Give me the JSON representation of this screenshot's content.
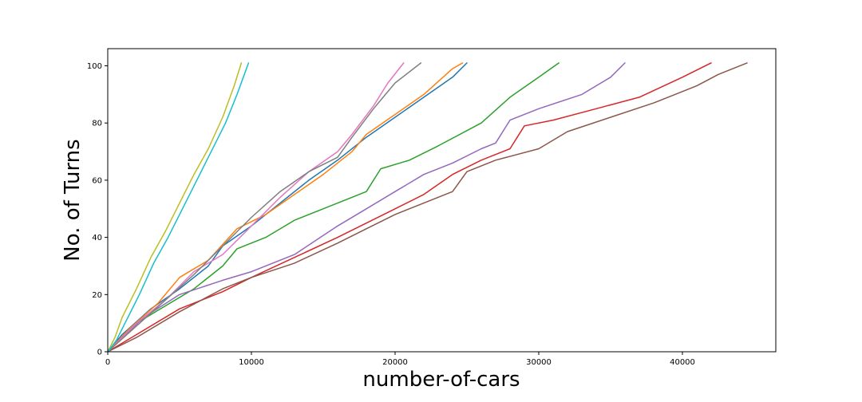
{
  "chart_data": {
    "type": "line",
    "xlabel": "number-of-cars",
    "ylabel": "No. of Turns",
    "xlim": [
      0,
      46500
    ],
    "ylim": [
      0,
      106
    ],
    "xticks": [
      0,
      10000,
      20000,
      30000,
      40000
    ],
    "yticks": [
      0,
      20,
      40,
      60,
      80,
      100
    ],
    "grid": false,
    "series": [
      {
        "color": "#1f77b4",
        "x": [
          0,
          1000,
          3000,
          5000,
          7000,
          8000,
          10000,
          12000,
          14000,
          16000,
          18000,
          20000,
          22000,
          24000,
          25000
        ],
        "y": [
          0,
          6,
          15,
          22,
          30,
          37,
          44,
          52,
          60,
          67,
          75,
          82,
          89,
          96,
          101
        ]
      },
      {
        "color": "#ff7f0e",
        "x": [
          0,
          1500,
          3500,
          5000,
          7000,
          9000,
          11000,
          13000,
          15000,
          17000,
          18000,
          20000,
          22000,
          24000,
          24700
        ],
        "y": [
          0,
          8,
          17,
          26,
          32,
          43,
          48,
          55,
          62,
          70,
          76,
          83,
          90,
          99,
          101
        ]
      },
      {
        "color": "#2ca02c",
        "x": [
          0,
          2000,
          4000,
          6000,
          8000,
          9000,
          11000,
          13000,
          16000,
          18000,
          19000,
          21000,
          23000,
          26000,
          28000,
          30000,
          31400
        ],
        "y": [
          0,
          10,
          16,
          22,
          30,
          36,
          40,
          46,
          52,
          56,
          64,
          67,
          72,
          80,
          89,
          96,
          101
        ]
      },
      {
        "color": "#d62728",
        "x": [
          0,
          2000,
          5000,
          8000,
          10000,
          13000,
          16000,
          18000,
          20000,
          22000,
          24000,
          26000,
          28000,
          29000,
          31000,
          34000,
          37000,
          40000,
          42000
        ],
        "y": [
          0,
          6,
          15,
          21,
          26,
          33,
          40,
          45,
          50,
          55,
          62,
          67,
          71,
          79,
          81,
          85,
          89,
          96,
          101
        ]
      },
      {
        "color": "#9467bd",
        "x": [
          0,
          2500,
          5000,
          8000,
          10000,
          13000,
          16000,
          18000,
          20000,
          22000,
          24000,
          26000,
          27000,
          28000,
          30000,
          33000,
          35000,
          36000
        ],
        "y": [
          0,
          12,
          20,
          25,
          28,
          34,
          44,
          50,
          56,
          62,
          66,
          71,
          73,
          81,
          85,
          90,
          96,
          101
        ]
      },
      {
        "color": "#8c564b",
        "x": [
          0,
          2000,
          5000,
          8000,
          10000,
          13000,
          16000,
          18000,
          20000,
          24000,
          25000,
          27000,
          30000,
          32000,
          35000,
          38000,
          41000,
          42500,
          44500
        ],
        "y": [
          0,
          5,
          14,
          22,
          26,
          31,
          38,
          43,
          48,
          56,
          63,
          67,
          71,
          77,
          82,
          87,
          93,
          97,
          101
        ]
      },
      {
        "color": "#e377c2",
        "x": [
          0,
          2000,
          4000,
          6000,
          8000,
          10000,
          12000,
          14000,
          16000,
          17000,
          18500,
          19500,
          20600
        ],
        "y": [
          0,
          10,
          18,
          28,
          34,
          44,
          54,
          63,
          70,
          76,
          86,
          94,
          101
        ]
      },
      {
        "color": "#7f7f7f",
        "x": [
          0,
          2000,
          4000,
          6000,
          8000,
          10000,
          12000,
          14000,
          16000,
          17000,
          18500,
          20000,
          21800
        ],
        "y": [
          0,
          9,
          18,
          27,
          37,
          47,
          56,
          63,
          68,
          75,
          85,
          94,
          101
        ]
      },
      {
        "color": "#bcbd22",
        "x": [
          0,
          500,
          1000,
          2000,
          3000,
          4000,
          5000,
          6000,
          7000,
          8000,
          8800,
          9300
        ],
        "y": [
          0,
          5,
          12,
          22,
          33,
          42,
          52,
          62,
          71,
          82,
          93,
          101
        ]
      },
      {
        "color": "#17becf",
        "x": [
          0,
          600,
          1200,
          2200,
          3200,
          4200,
          5200,
          6200,
          7200,
          8200,
          9000,
          9800
        ],
        "y": [
          0,
          4,
          10,
          20,
          31,
          40,
          50,
          60,
          70,
          80,
          90,
          101
        ]
      }
    ]
  }
}
